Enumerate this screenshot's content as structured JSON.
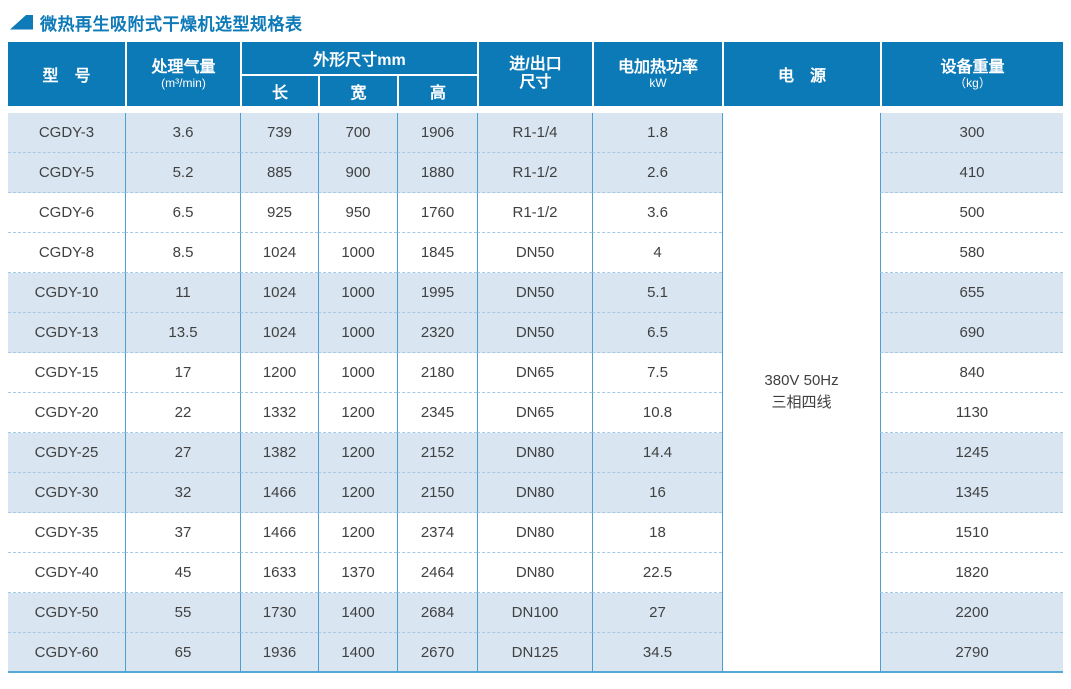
{
  "title": {
    "text": "微热再生吸附式干燥机选型规格表"
  },
  "colors": {
    "header_blue": "#0d7ab8",
    "stripe_blue": "#d9e6f2",
    "grid_blue": "#4aa0d4",
    "dash_blue": "#a6c9e6",
    "title_blue": "#0e7ab8",
    "body_text": "#404040"
  },
  "table": {
    "headers": {
      "model": "型　号",
      "capacity_line1": "处理气量",
      "capacity_line2": "(m³/min)",
      "dimensions": "外形尺寸mm",
      "length": "长",
      "width": "宽",
      "height": "高",
      "port_line1": "进/出口",
      "port_line2": "尺寸",
      "power_line1": "电加热功率",
      "power_line2": "kW",
      "supply": "电　源",
      "weight_line1": "设备重量",
      "weight_line2": "（kg）"
    },
    "power_supply": {
      "line1": "380V 50Hz",
      "line2": "三相四线"
    },
    "rows": [
      {
        "model": "CGDY-3",
        "capacity": "3.6",
        "length": "739",
        "width": "700",
        "height": "1906",
        "port": "R1-1/4",
        "power": "1.8",
        "weight": "300"
      },
      {
        "model": "CGDY-5",
        "capacity": "5.2",
        "length": "885",
        "width": "900",
        "height": "1880",
        "port": "R1-1/2",
        "power": "2.6",
        "weight": "410"
      },
      {
        "model": "CGDY-6",
        "capacity": "6.5",
        "length": "925",
        "width": "950",
        "height": "1760",
        "port": "R1-1/2",
        "power": "3.6",
        "weight": "500"
      },
      {
        "model": "CGDY-8",
        "capacity": "8.5",
        "length": "1024",
        "width": "1000",
        "height": "1845",
        "port": "DN50",
        "power": "4",
        "weight": "580"
      },
      {
        "model": "CGDY-10",
        "capacity": "11",
        "length": "1024",
        "width": "1000",
        "height": "1995",
        "port": "DN50",
        "power": "5.1",
        "weight": "655"
      },
      {
        "model": "CGDY-13",
        "capacity": "13.5",
        "length": "1024",
        "width": "1000",
        "height": "2320",
        "port": "DN50",
        "power": "6.5",
        "weight": "690"
      },
      {
        "model": "CGDY-15",
        "capacity": "17",
        "length": "1200",
        "width": "1000",
        "height": "2180",
        "port": "DN65",
        "power": "7.5",
        "weight": "840"
      },
      {
        "model": "CGDY-20",
        "capacity": "22",
        "length": "1332",
        "width": "1200",
        "height": "2345",
        "port": "DN65",
        "power": "10.8",
        "weight": "1130"
      },
      {
        "model": "CGDY-25",
        "capacity": "27",
        "length": "1382",
        "width": "1200",
        "height": "2152",
        "port": "DN80",
        "power": "14.4",
        "weight": "1245"
      },
      {
        "model": "CGDY-30",
        "capacity": "32",
        "length": "1466",
        "width": "1200",
        "height": "2150",
        "port": "DN80",
        "power": "16",
        "weight": "1345"
      },
      {
        "model": "CGDY-35",
        "capacity": "37",
        "length": "1466",
        "width": "1200",
        "height": "2374",
        "port": "DN80",
        "power": "18",
        "weight": "1510"
      },
      {
        "model": "CGDY-40",
        "capacity": "45",
        "length": "1633",
        "width": "1370",
        "height": "2464",
        "port": "DN80",
        "power": "22.5",
        "weight": "1820"
      },
      {
        "model": "CGDY-50",
        "capacity": "55",
        "length": "1730",
        "width": "1400",
        "height": "2684",
        "port": "DN100",
        "power": "27",
        "weight": "2200"
      },
      {
        "model": "CGDY-60",
        "capacity": "65",
        "length": "1936",
        "width": "1400",
        "height": "2670",
        "port": "DN125",
        "power": "34.5",
        "weight": "2790"
      }
    ]
  }
}
